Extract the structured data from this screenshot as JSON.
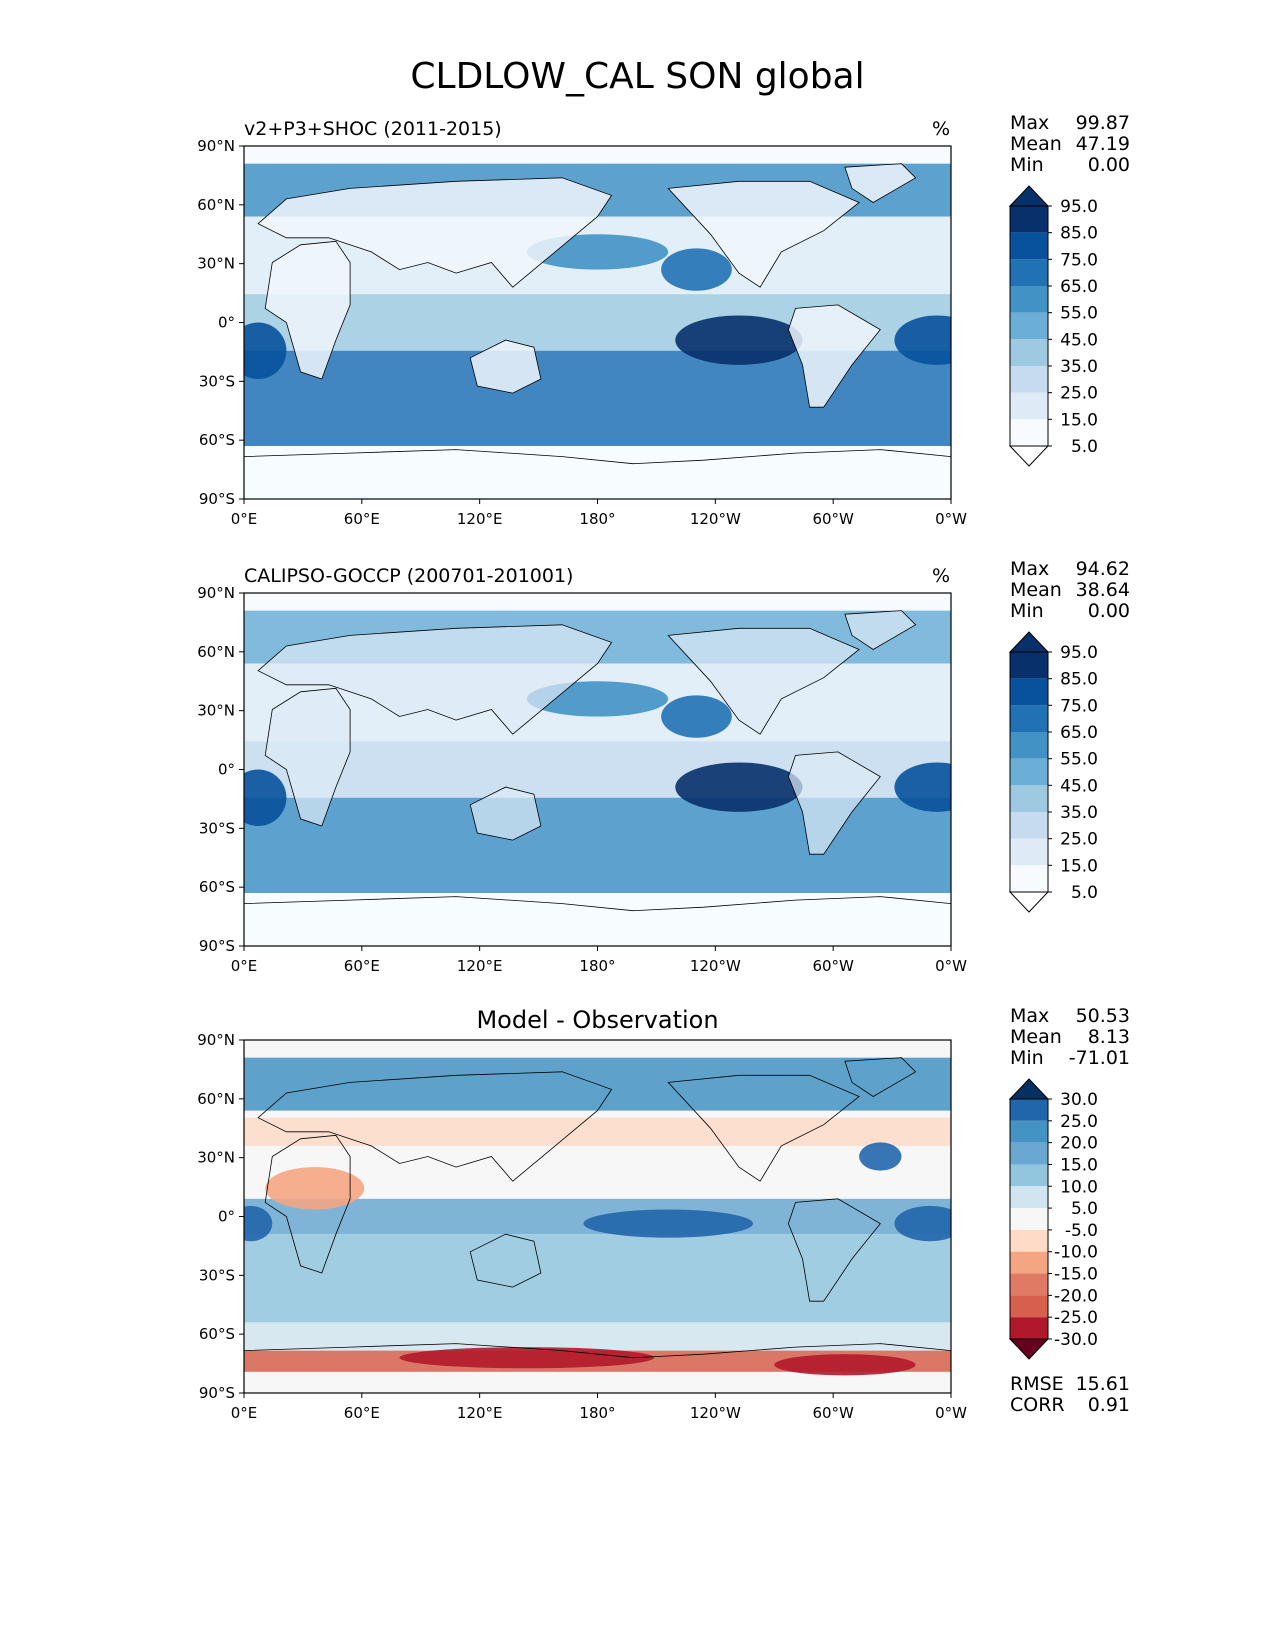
{
  "figure": {
    "title": "CLDLOW_CAL SON global"
  },
  "lat_ticks": [
    "90°N",
    "60°N",
    "30°N",
    "0°",
    "30°S",
    "60°S",
    "90°S"
  ],
  "lon_ticks": [
    "0°E",
    "60°E",
    "120°E",
    "180°",
    "120°W",
    "60°W",
    "0°W"
  ],
  "panels": [
    {
      "name": "model",
      "title": "v2+P3+SHOC (2011-2015)",
      "units": "%",
      "stats": [
        {
          "label": "Max",
          "value": "99.87"
        },
        {
          "label": "Mean",
          "value": "47.19"
        },
        {
          "label": "Min",
          "value": "0.00"
        }
      ],
      "colorbar": {
        "labels": [
          "95.0",
          "85.0",
          "75.0",
          "65.0",
          "55.0",
          "45.0",
          "35.0",
          "25.0",
          "15.0",
          "5.0"
        ],
        "colors": [
          "#08306b",
          "#08519c",
          "#2171b5",
          "#4292c6",
          "#6baed6",
          "#9ecae1",
          "#c6dbef",
          "#deebf7",
          "#f7fbff"
        ],
        "extend_top": "#08306b",
        "extend_bottom": "#ffffff"
      }
    },
    {
      "name": "obs",
      "title": "CALIPSO-GOCCP (200701-201001)",
      "units": "%",
      "stats": [
        {
          "label": "Max",
          "value": "94.62"
        },
        {
          "label": "Mean",
          "value": "38.64"
        },
        {
          "label": "Min",
          "value": "0.00"
        }
      ],
      "colorbar": {
        "labels": [
          "95.0",
          "85.0",
          "75.0",
          "65.0",
          "55.0",
          "45.0",
          "35.0",
          "25.0",
          "15.0",
          "5.0"
        ],
        "colors": [
          "#08306b",
          "#08519c",
          "#2171b5",
          "#4292c6",
          "#6baed6",
          "#9ecae1",
          "#c6dbef",
          "#deebf7",
          "#f7fbff"
        ],
        "extend_top": "#08306b",
        "extend_bottom": "#ffffff"
      }
    },
    {
      "name": "diff",
      "title": "Model - Observation",
      "stats": [
        {
          "label": "Max",
          "value": "50.53"
        },
        {
          "label": "Mean",
          "value": "8.13"
        },
        {
          "label": "Min",
          "value": "-71.01"
        }
      ],
      "colorbar": {
        "labels": [
          "30.0",
          "25.0",
          "20.0",
          "15.0",
          "10.0",
          "5.0",
          "-5.0",
          "-10.0",
          "-15.0",
          "-20.0",
          "-25.0",
          "-30.0"
        ],
        "colors": [
          "#2166ac",
          "#4393c3",
          "#6aa8d1",
          "#92c5de",
          "#d1e5f0",
          "#f7f7f7",
          "#fddbc7",
          "#f4a582",
          "#e07a65",
          "#d6604d",
          "#b2182b"
        ],
        "extend_top": "#053061",
        "extend_bottom": "#67001f"
      },
      "extra_stats": [
        {
          "label": "RMSE",
          "value": "15.61"
        },
        {
          "label": "CORR",
          "value": "0.91"
        }
      ]
    }
  ],
  "palette": {
    "map_bg": "#f7fbff",
    "diff_bg": "#f7f7f7",
    "coast": "#000000"
  }
}
